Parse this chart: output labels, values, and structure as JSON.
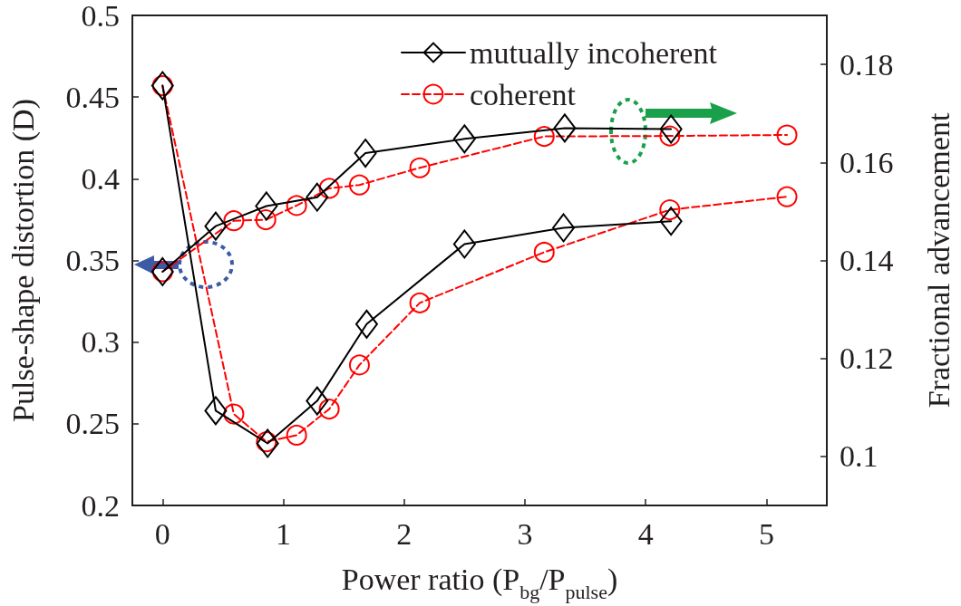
{
  "chart_data": {
    "type": "line",
    "xlabel": "Power ratio (P$_{bg}$/P$_{pulse}$)",
    "ylabel": "Pulse-shape distortion (D)",
    "y2label": "Fractional advancement",
    "xlim": [
      -0.25,
      5.5
    ],
    "xticks": [
      0,
      1,
      2,
      3,
      4,
      5
    ],
    "ylim": [
      0.2,
      0.5
    ],
    "yticks": [
      0.2,
      0.25,
      0.3,
      0.35,
      0.4,
      0.45,
      0.5
    ],
    "y2lim": [
      0.09,
      0.19
    ],
    "y2ticks": [
      0.1,
      0.12,
      0.14,
      0.16,
      0.18
    ],
    "grid": false,
    "legend": "top right",
    "series": [
      {
        "name": "mutually incoherent",
        "color": "#000000",
        "marker": "diamond",
        "line_style": "solid",
        "x": [
          0,
          0.44,
          0.87,
          1.28,
          1.69,
          2.5,
          3.32,
          4.21
        ],
        "values": [
          0.457,
          0.258,
          0.238,
          0.264,
          0.311,
          0.36,
          0.37,
          0.374
        ]
      },
      {
        "name": "coherent",
        "color": "#ff0000",
        "marker": "circle",
        "line_style": "dashed",
        "x": [
          0,
          0.59,
          0.86,
          1.11,
          1.38,
          1.63,
          2.13,
          3.16,
          4.2,
          5.17
        ],
        "values": [
          0.457,
          0.256,
          0.239,
          0.243,
          0.259,
          0.286,
          0.324,
          0.355,
          0.381,
          0.389
        ]
      },
      {
        "color": "#000000",
        "marker": "diamond",
        "line_style": "solid",
        "axis": "y2",
        "x": [
          0,
          0.44,
          0.86,
          1.28,
          1.68,
          2.5,
          3.33,
          4.21
        ],
        "values": [
          0.1377,
          0.147,
          0.1511,
          0.1529,
          0.1619,
          0.1648,
          0.167,
          0.1668
        ]
      },
      {
        "color": "#ff0000",
        "marker": "circle",
        "line_style": "dashed",
        "axis": "y2",
        "x": [
          0,
          0.59,
          0.855,
          1.11,
          1.38,
          1.63,
          2.13,
          3.16,
          4.2,
          5.17
        ],
        "values": [
          0.1377,
          0.1481,
          0.1483,
          0.1512,
          0.1547,
          0.1554,
          0.1589,
          0.1653,
          0.1654,
          0.1656
        ]
      }
    ]
  }
}
